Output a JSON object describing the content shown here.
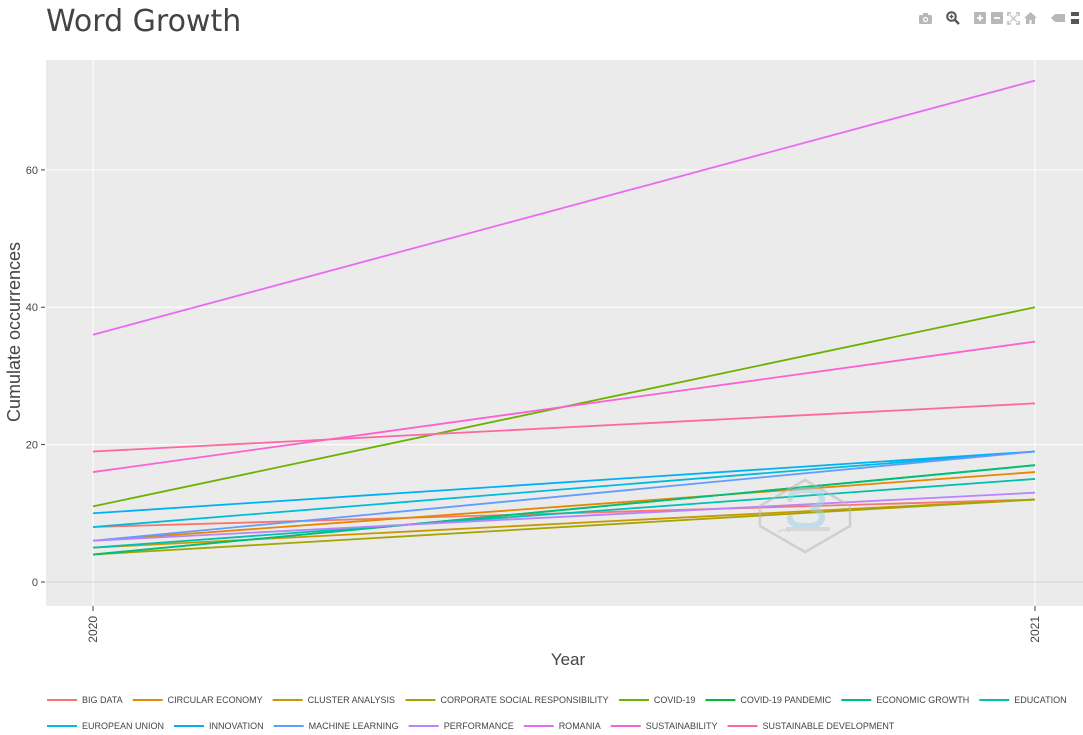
{
  "modebar": {
    "buttons": [
      {
        "name": "camera-icon"
      },
      {
        "name": "zoom-icon"
      },
      {
        "name": "zoom-in-icon"
      },
      {
        "name": "zoom-out-icon"
      },
      {
        "name": "autoscale-icon"
      },
      {
        "name": "reset-axes-icon"
      },
      {
        "name": "spike-lines-icon"
      },
      {
        "name": "compare-data-icon"
      }
    ]
  },
  "chart_data": {
    "type": "line",
    "title": "Word Growth",
    "xlabel": "Year",
    "ylabel": "Cumulate occurrences",
    "x": [
      "2020",
      "2021"
    ],
    "ylim": [
      -3.5,
      76
    ],
    "yticks": [
      0,
      20,
      40,
      60
    ],
    "grid": true,
    "legend_position": "bottom",
    "plot_background": "#ebebeb",
    "series": [
      {
        "name": "BIG DATA",
        "color": "#f8766d",
        "values": [
          8,
          12
        ]
      },
      {
        "name": "CIRCULAR ECONOMY",
        "color": "#e58700",
        "values": [
          6,
          16
        ]
      },
      {
        "name": "CLUSTER ANALYSIS",
        "color": "#c99800",
        "values": [
          5,
          12
        ]
      },
      {
        "name": "CORPORATE SOCIAL RESPONSIBILITY",
        "color": "#a3a500",
        "values": [
          4,
          12
        ]
      },
      {
        "name": "COVID-19",
        "color": "#6bb100",
        "values": [
          11,
          40
        ]
      },
      {
        "name": "COVID-19 PANDEMIC",
        "color": "#00ba38",
        "values": [
          4,
          17
        ]
      },
      {
        "name": "ECONOMIC GROWTH",
        "color": "#00bf7d",
        "values": [
          4,
          17
        ]
      },
      {
        "name": "EDUCATION",
        "color": "#00c0af",
        "values": [
          5,
          15
        ]
      },
      {
        "name": "EUROPEAN UNION",
        "color": "#00bcd8",
        "values": [
          8,
          19
        ]
      },
      {
        "name": "INNOVATION",
        "color": "#00b0f6",
        "values": [
          10,
          19
        ]
      },
      {
        "name": "MACHINE LEARNING",
        "color": "#619cff",
        "values": [
          6,
          19
        ]
      },
      {
        "name": "PERFORMANCE",
        "color": "#b983ff",
        "values": [
          6,
          13
        ]
      },
      {
        "name": "ROMANIA",
        "color": "#e76bf3",
        "values": [
          36,
          73
        ]
      },
      {
        "name": "SUSTAINABILITY",
        "color": "#fd61d1",
        "values": [
          16,
          35
        ]
      },
      {
        "name": "SUSTAINABLE DEVELOPMENT",
        "color": "#ff67a4",
        "values": [
          19,
          26
        ]
      }
    ]
  }
}
